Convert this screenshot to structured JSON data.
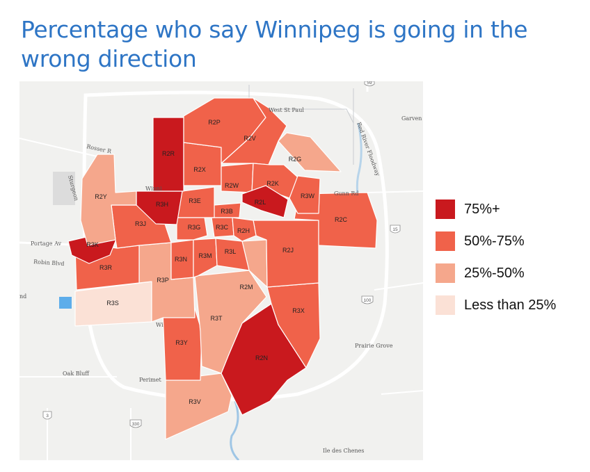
{
  "title": "Percentage who say Winnipeg is going in the wrong direction",
  "legend": [
    {
      "label": "75%+",
      "color": "#c9191e"
    },
    {
      "label": "50%-75%",
      "color": "#f0624a"
    },
    {
      "label": "25%-50%",
      "color": "#f5a78c"
    },
    {
      "label": "Less than 25%",
      "color": "#fbe1d6"
    }
  ],
  "districts": [
    {
      "code": "R2R",
      "category": "75%+"
    },
    {
      "code": "R3H",
      "category": "75%+"
    },
    {
      "code": "R2L",
      "category": "75%+"
    },
    {
      "code": "R3K",
      "category": "75%+"
    },
    {
      "code": "R2N",
      "category": "75%+"
    },
    {
      "code": "R2P",
      "category": "50%-75%"
    },
    {
      "code": "R2V",
      "category": "50%-75%"
    },
    {
      "code": "R2X",
      "category": "50%-75%"
    },
    {
      "code": "R2W",
      "category": "50%-75%"
    },
    {
      "code": "R2K",
      "category": "50%-75%"
    },
    {
      "code": "R3W",
      "category": "50%-75%"
    },
    {
      "code": "R2C",
      "category": "50%-75%"
    },
    {
      "code": "R3E",
      "category": "50%-75%"
    },
    {
      "code": "R3B",
      "category": "50%-75%"
    },
    {
      "code": "R3J",
      "category": "50%-75%"
    },
    {
      "code": "R3G",
      "category": "50%-75%"
    },
    {
      "code": "R3C",
      "category": "50%-75%"
    },
    {
      "code": "R2H",
      "category": "50%-75%"
    },
    {
      "code": "R3R",
      "category": "50%-75%"
    },
    {
      "code": "R3N",
      "category": "50%-75%"
    },
    {
      "code": "R3M",
      "category": "50%-75%"
    },
    {
      "code": "R3L",
      "category": "50%-75%"
    },
    {
      "code": "R2J",
      "category": "50%-75%"
    },
    {
      "code": "R3X",
      "category": "50%-75%"
    },
    {
      "code": "R3Y",
      "category": "50%-75%"
    },
    {
      "code": "R2G",
      "category": "25%-50%"
    },
    {
      "code": "R2Y",
      "category": "25%-50%"
    },
    {
      "code": "R3P",
      "category": "25%-50%"
    },
    {
      "code": "R2M",
      "category": "25%-50%"
    },
    {
      "code": "R3T",
      "category": "25%-50%"
    },
    {
      "code": "R3V",
      "category": "25%-50%"
    },
    {
      "code": "R3S",
      "category": "Less than 25%"
    }
  ],
  "places": {
    "west_st_paul": "West St Paul",
    "garven": "Garven",
    "rosser": "Rosser R",
    "winnipeg": "Winni",
    "portage": "Portage Av",
    "robin": "Robin Blvd",
    "oak_bluff": "Oak Bluff",
    "perimeter": "Perimet",
    "prairie_grove": "Prairie Grove",
    "ile_des_chenes": "Ile des Chenes",
    "red_river": "Red River Floodway",
    "sturgeon": "Sturgeon",
    "nd": "nd",
    "wi": "Wi",
    "gunn": "Gunn Rd"
  },
  "shields": {
    "h59": "59",
    "h15": "15",
    "h100": "100",
    "h3": "3",
    "h330": "330"
  }
}
